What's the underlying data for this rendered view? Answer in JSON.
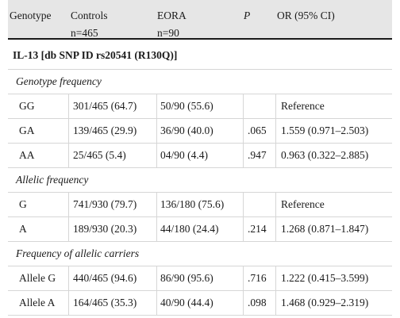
{
  "header": {
    "genotype": "Genotype",
    "controls": "Controls",
    "controls_n": "n=465",
    "eora": "EORA",
    "eora_n": "n=90",
    "p": "P",
    "or": "OR (95% CI)"
  },
  "section_title": "IL-13 [db SNP ID rs20541 (R130Q)]",
  "groups": [
    {
      "label": "Genotype frequency",
      "rows": [
        {
          "name": "GG",
          "controls": "301/465 (64.7)",
          "eora": "50/90 (55.6)",
          "p": "",
          "or": "Reference"
        },
        {
          "name": "GA",
          "controls": "139/465 (29.9)",
          "eora": "36/90 (40.0)",
          "p": ".065",
          "or": "1.559 (0.971–2.503)"
        },
        {
          "name": "AA",
          "controls": "25/465 (5.4)",
          "eora": "04/90 (4.4)",
          "p": ".947",
          "or": "0.963 (0.322–2.885)"
        }
      ]
    },
    {
      "label": "Allelic frequency",
      "rows": [
        {
          "name": "G",
          "controls": "741/930 (79.7)",
          "eora": "136/180 (75.6)",
          "p": "",
          "or": "Reference"
        },
        {
          "name": "A",
          "controls": "189/930 (20.3)",
          "eora": "44/180 (24.4)",
          "p": ".214",
          "or": "1.268 (0.871–1.847)"
        }
      ]
    },
    {
      "label": "Frequency of allelic carriers",
      "rows": [
        {
          "name": "Allele G",
          "controls": "440/465 (94.6)",
          "eora": "86/90 (95.6)",
          "p": ".716",
          "or": "1.222 (0.415–3.599)"
        },
        {
          "name": "Allele A",
          "controls": "164/465 (35.3)",
          "eora": "40/90 (44.4)",
          "p": ".098",
          "or": "1.468 (0.929–2.319)"
        }
      ]
    }
  ]
}
